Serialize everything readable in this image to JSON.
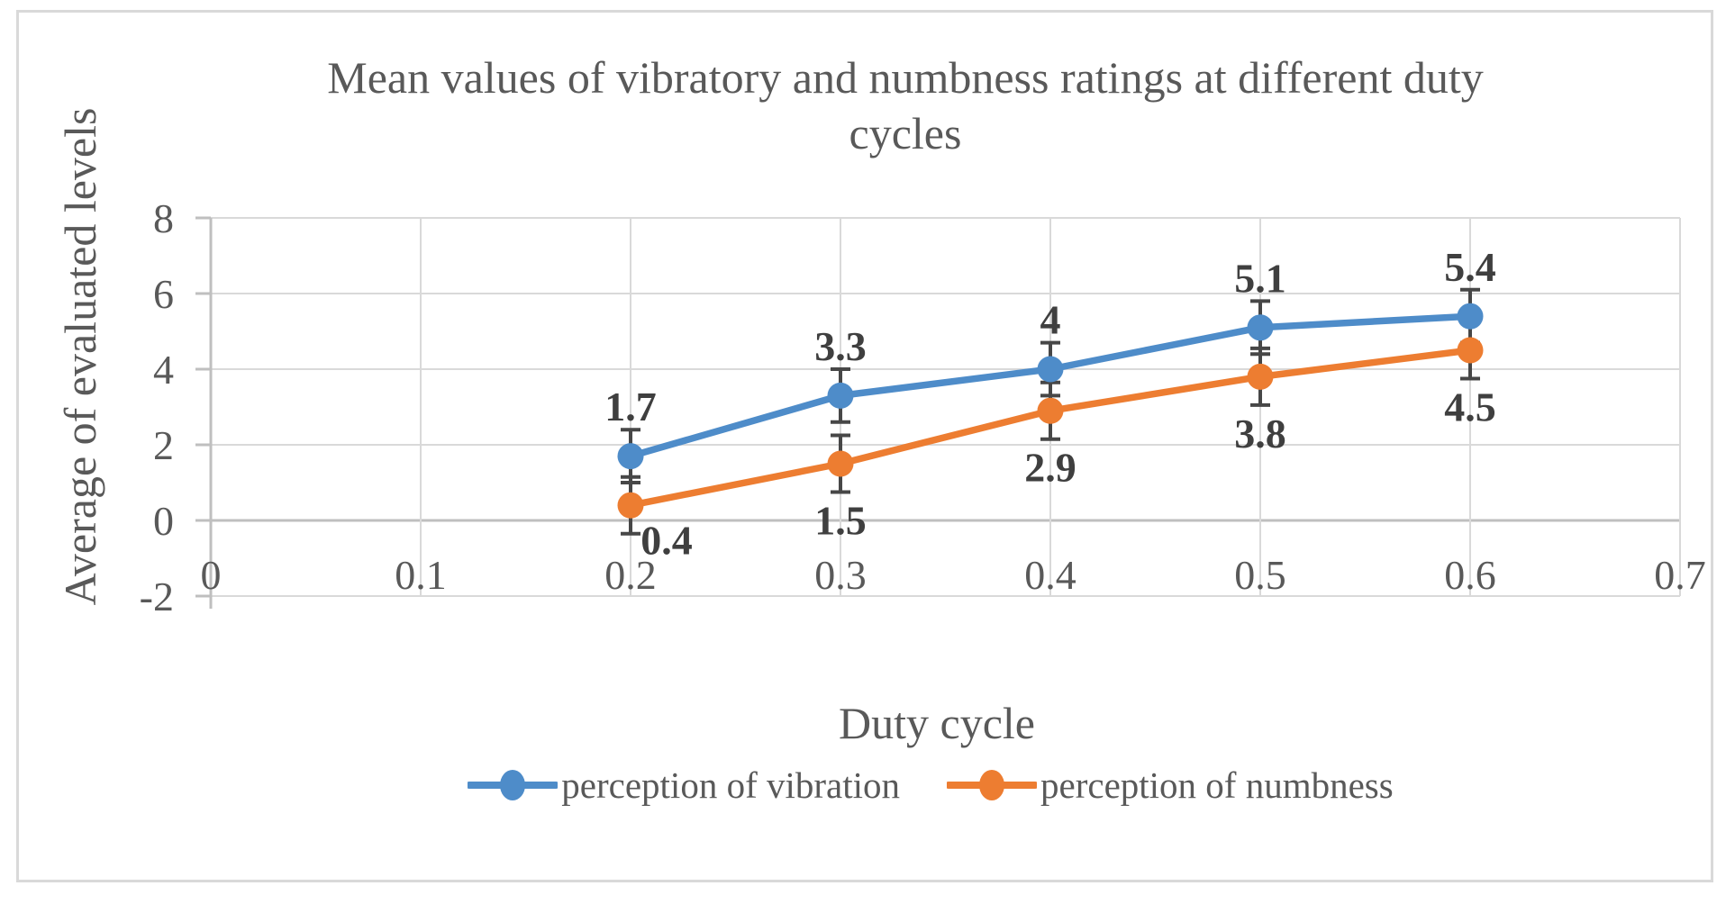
{
  "figure": {
    "title_lines": [
      "Mean values of vibratory and numbness ratings at different duty",
      "cycles"
    ]
  },
  "chart_data": {
    "type": "line",
    "title": "Mean values of vibratory and numbness ratings at different duty cycles",
    "xlabel": "Duty cycle",
    "ylabel": "Average of evaluated levels",
    "x": [
      0.2,
      0.3,
      0.4,
      0.5,
      0.6
    ],
    "series": [
      {
        "name": "perception of vibration",
        "color": "#4E8CC9",
        "values": [
          1.7,
          3.3,
          4,
          5.1,
          5.4
        ],
        "point_labels": [
          "1.7",
          "3.3",
          "4",
          "5.1",
          "5.4"
        ],
        "error": 0.7,
        "label_position": "above"
      },
      {
        "name": "perception of numbness",
        "color": "#ED7D31",
        "values": [
          0.4,
          1.5,
          2.9,
          3.8,
          4.5
        ],
        "point_labels": [
          "0.4",
          "1.5",
          "2.9",
          "3.8",
          "4.5"
        ],
        "error": 0.75,
        "label_position": "below"
      }
    ],
    "xlim": [
      0,
      0.7
    ],
    "ylim": [
      -2,
      8
    ],
    "xticks": {
      "values": [
        0,
        0.1,
        0.2,
        0.3,
        0.4,
        0.5,
        0.6,
        0.7
      ],
      "labels": [
        "0",
        "0.1",
        "0.2",
        "0.3",
        "0.4",
        "0.5",
        "0.6",
        "0.7"
      ]
    },
    "yticks": {
      "values": [
        -2,
        0,
        2,
        4,
        6,
        8
      ],
      "labels": [
        "-2",
        "0",
        "2",
        "4",
        "6",
        "8"
      ]
    },
    "grid": true,
    "legend_position": "bottom",
    "colors": {
      "gridline": "#D9D9D9",
      "axis_line": "#BFBFBF",
      "error_bar": "#474747",
      "data_label": "#3F3F3F",
      "axis_text": "#595959",
      "title_text": "#595959",
      "figure_border": "#D9D9D9"
    }
  }
}
